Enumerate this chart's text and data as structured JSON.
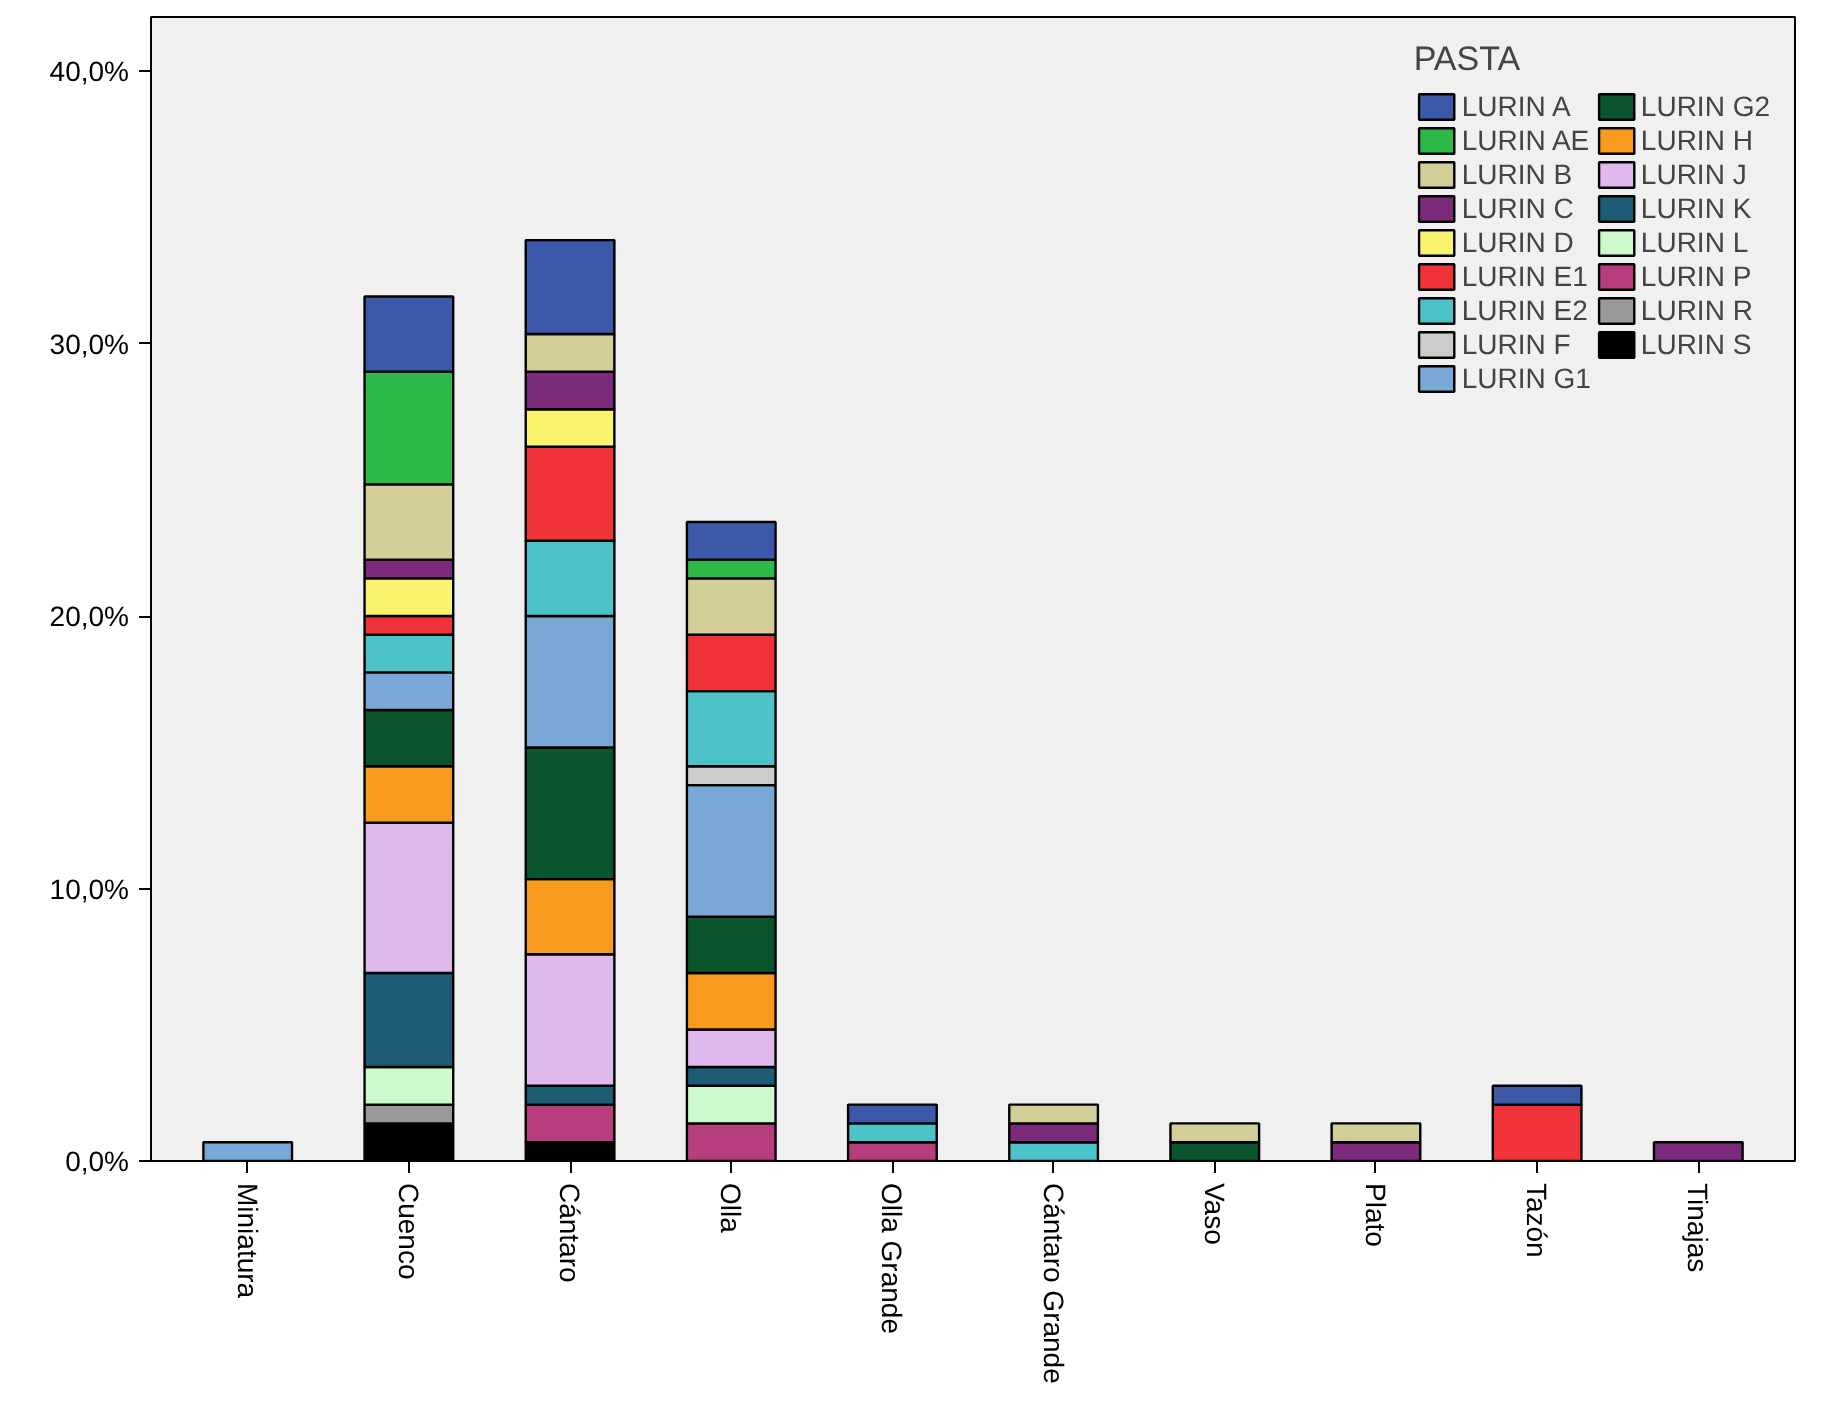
{
  "chart_data": {
    "type": "bar",
    "stacked": true,
    "legend_title": "PASTA",
    "legend": "top right",
    "grid": false,
    "categories": [
      "Miniatura",
      "Cuenco",
      "Cántaro",
      "Olla",
      "Olla Grande",
      "Cántaro Grande",
      "Vaso",
      "Plato",
      "Tazón",
      "Tinajas"
    ],
    "ylim": [
      0,
      42
    ],
    "yticks": [
      {
        "value": 0,
        "label": "0,0%"
      },
      {
        "value": 10,
        "label": "10,0%"
      },
      {
        "value": 20,
        "label": "20,0%"
      },
      {
        "value": 30,
        "label": "30,0%"
      },
      {
        "value": 40,
        "label": "40,0%"
      }
    ],
    "series": [
      {
        "name": "LURIN S",
        "color": "#000000",
        "values": [
          null,
          1.38,
          0.69,
          null,
          null,
          null,
          null,
          null,
          null,
          null
        ]
      },
      {
        "name": "LURIN R",
        "color": "#999999",
        "values": [
          null,
          0.69,
          null,
          null,
          null,
          null,
          null,
          null,
          null,
          null
        ]
      },
      {
        "name": "LURIN P",
        "color": "#b83d7d",
        "values": [
          null,
          null,
          1.38,
          1.38,
          0.69,
          null,
          null,
          null,
          null,
          null
        ]
      },
      {
        "name": "LURIN L",
        "color": "#ccfacc",
        "values": [
          null,
          1.38,
          null,
          1.38,
          null,
          null,
          null,
          null,
          null,
          null
        ]
      },
      {
        "name": "LURIN K",
        "color": "#1d5c74",
        "values": [
          null,
          3.45,
          0.69,
          0.69,
          null,
          null,
          null,
          null,
          null,
          null
        ]
      },
      {
        "name": "LURIN J",
        "color": "#dfb9ee",
        "values": [
          null,
          5.52,
          4.83,
          1.38,
          null,
          null,
          null,
          null,
          null,
          null
        ]
      },
      {
        "name": "LURIN H",
        "color": "#f79a1e",
        "values": [
          null,
          2.07,
          2.76,
          2.07,
          null,
          null,
          null,
          null,
          null,
          null
        ]
      },
      {
        "name": "LURIN G2",
        "color": "#0b552c",
        "values": [
          null,
          2.07,
          4.83,
          2.07,
          null,
          null,
          0.69,
          null,
          null,
          null
        ]
      },
      {
        "name": "LURIN G1",
        "color": "#7aa8d6",
        "values": [
          0.69,
          1.38,
          4.83,
          4.83,
          null,
          null,
          null,
          null,
          null,
          null
        ]
      },
      {
        "name": "LURIN F",
        "color": "#cccccc",
        "values": [
          null,
          null,
          null,
          0.69,
          null,
          null,
          null,
          null,
          null,
          null
        ]
      },
      {
        "name": "LURIN E2",
        "color": "#4bc3c8",
        "values": [
          null,
          1.38,
          2.76,
          2.76,
          0.69,
          0.69,
          null,
          null,
          null,
          null
        ]
      },
      {
        "name": "LURIN E1",
        "color": "#ef3339",
        "values": [
          null,
          0.69,
          3.45,
          2.07,
          null,
          null,
          null,
          null,
          2.07,
          null
        ]
      },
      {
        "name": "LURIN D",
        "color": "#f9f36e",
        "values": [
          null,
          1.38,
          1.38,
          null,
          null,
          null,
          null,
          null,
          null,
          null
        ]
      },
      {
        "name": "LURIN C",
        "color": "#7b2a7c",
        "values": [
          null,
          0.69,
          1.38,
          null,
          null,
          0.69,
          null,
          0.69,
          null,
          0.69
        ]
      },
      {
        "name": "LURIN B",
        "color": "#d3ce97",
        "values": [
          null,
          2.76,
          1.38,
          2.07,
          null,
          0.69,
          0.69,
          0.69,
          null,
          null
        ]
      },
      {
        "name": "LURIN AE",
        "color": "#2db84a",
        "values": [
          null,
          4.14,
          null,
          0.69,
          null,
          null,
          null,
          null,
          null,
          null
        ]
      },
      {
        "name": "LURIN A",
        "color": "#3c58a8",
        "values": [
          null,
          2.76,
          3.45,
          1.38,
          0.69,
          null,
          null,
          null,
          0.69,
          null
        ]
      }
    ]
  }
}
